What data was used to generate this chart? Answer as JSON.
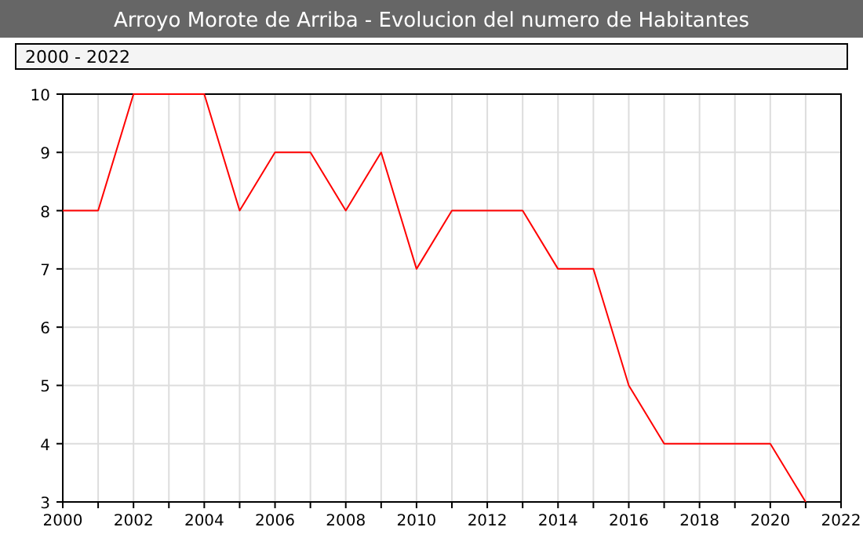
{
  "chart_data": {
    "type": "line",
    "title": "Arroyo Morote de Arriba - Evolucion del numero de Habitantes",
    "annotations": [
      "2000 - 2022"
    ],
    "x": [
      2000,
      2001,
      2002,
      2003,
      2004,
      2005,
      2006,
      2007,
      2008,
      2009,
      2010,
      2011,
      2012,
      2013,
      2014,
      2015,
      2016,
      2017,
      2018,
      2019,
      2020,
      2021
    ],
    "series": [
      {
        "color": "#ff0000",
        "values": [
          8,
          8,
          10,
          10,
          10,
          8,
          9,
          9,
          8,
          9,
          7,
          8,
          8,
          8,
          7,
          7,
          5,
          4,
          4,
          4,
          4,
          3
        ]
      }
    ],
    "xlim": [
      2000,
      2022
    ],
    "xticks": [
      2000,
      {
        "value": 2001,
        "label": null
      },
      2002,
      {
        "value": 2003,
        "label": null
      },
      2004,
      {
        "value": 2005,
        "label": null
      },
      2006,
      {
        "value": 2007,
        "label": null
      },
      2008,
      {
        "value": 2009,
        "label": null
      },
      2010,
      {
        "value": 2011,
        "label": null
      },
      2012,
      {
        "value": 2013,
        "label": null
      },
      2014,
      {
        "value": 2015,
        "label": null
      },
      2016,
      {
        "value": 2017,
        "label": null
      },
      2018,
      {
        "value": 2019,
        "label": null
      },
      2020,
      {
        "value": 2021,
        "label": null
      },
      2022
    ],
    "ylim": [
      3,
      10
    ],
    "yticks": [
      3,
      4,
      5,
      6,
      7,
      8,
      9,
      10
    ],
    "grid": true,
    "marker": "none",
    "line_style": "solid"
  }
}
